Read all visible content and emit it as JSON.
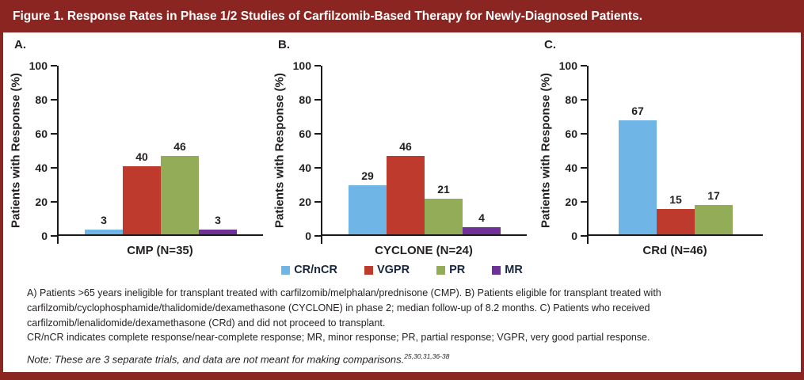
{
  "title": "Figure 1. Response Rates in Phase 1/2 Studies of Carfilzomib-Based Therapy for Newly-Diagnosed Patients.",
  "colors": {
    "maroon": "#8A2521",
    "blue": "#6FB5E5",
    "red": "#BD3A2C",
    "green": "#93AC57",
    "purple": "#6F3198",
    "axis": "#1A1A1A",
    "text": "#231F20"
  },
  "legend": [
    {
      "label": "CR/nCR",
      "color_key": "blue"
    },
    {
      "label": "VGPR",
      "color_key": "red"
    },
    {
      "label": "PR",
      "color_key": "green"
    },
    {
      "label": "MR",
      "color_key": "purple"
    }
  ],
  "chart_data": [
    {
      "type": "bar",
      "panel_label": "A.",
      "x_title": "CMP (N=35)",
      "categories": [
        "CR/nCR",
        "VGPR",
        "PR",
        "MR"
      ],
      "values": [
        3,
        40,
        46,
        3
      ],
      "ylabel": "Patients with Response (%)",
      "ylim": [
        0,
        100
      ],
      "y_ticks": [
        0,
        20,
        40,
        60,
        80,
        100
      ],
      "legend_position": "bottom-center-shared",
      "grid": false
    },
    {
      "type": "bar",
      "panel_label": "B.",
      "x_title": "CYCLONE (N=24)",
      "categories": [
        "CR/nCR",
        "VGPR",
        "PR",
        "MR"
      ],
      "values": [
        29,
        46,
        21,
        4
      ],
      "ylabel": "Patients with Response (%)",
      "ylim": [
        0,
        100
      ],
      "y_ticks": [
        0,
        20,
        40,
        60,
        80,
        100
      ],
      "legend_position": "bottom-center-shared",
      "grid": false
    },
    {
      "type": "bar",
      "panel_label": "C.",
      "x_title": "CRd (N=46)",
      "categories": [
        "CR/nCR",
        "VGPR",
        "PR"
      ],
      "values": [
        67,
        15,
        17
      ],
      "ylabel": "Patients with Response (%)",
      "ylim": [
        0,
        100
      ],
      "y_ticks": [
        0,
        20,
        40,
        60,
        80,
        100
      ],
      "legend_position": "bottom-center-shared",
      "grid": false
    }
  ],
  "caption": {
    "lines": [
      "A) Patients >65 years ineligible for transplant treated with carfilzomib/melphalan/prednisone (CMP). B) Patients eligible for transplant treated with",
      "carfilzomib/cyclophosphamide/thalidomide/dexamethasone (CYCLONE) in phase 2; median follow-up of 8.2 months. C) Patients who received",
      "carfilzomib/lenalidomide/dexamethasone (CRd) and did not proceed to transplant.",
      "CR/nCR indicates complete response/near-complete response; MR, minor response; PR, partial response; VGPR, very good partial response."
    ]
  },
  "note": {
    "text": "Note: These are 3 separate trials, and data are not meant for making comparisons.",
    "superscript": "25,30,31,36-38"
  }
}
